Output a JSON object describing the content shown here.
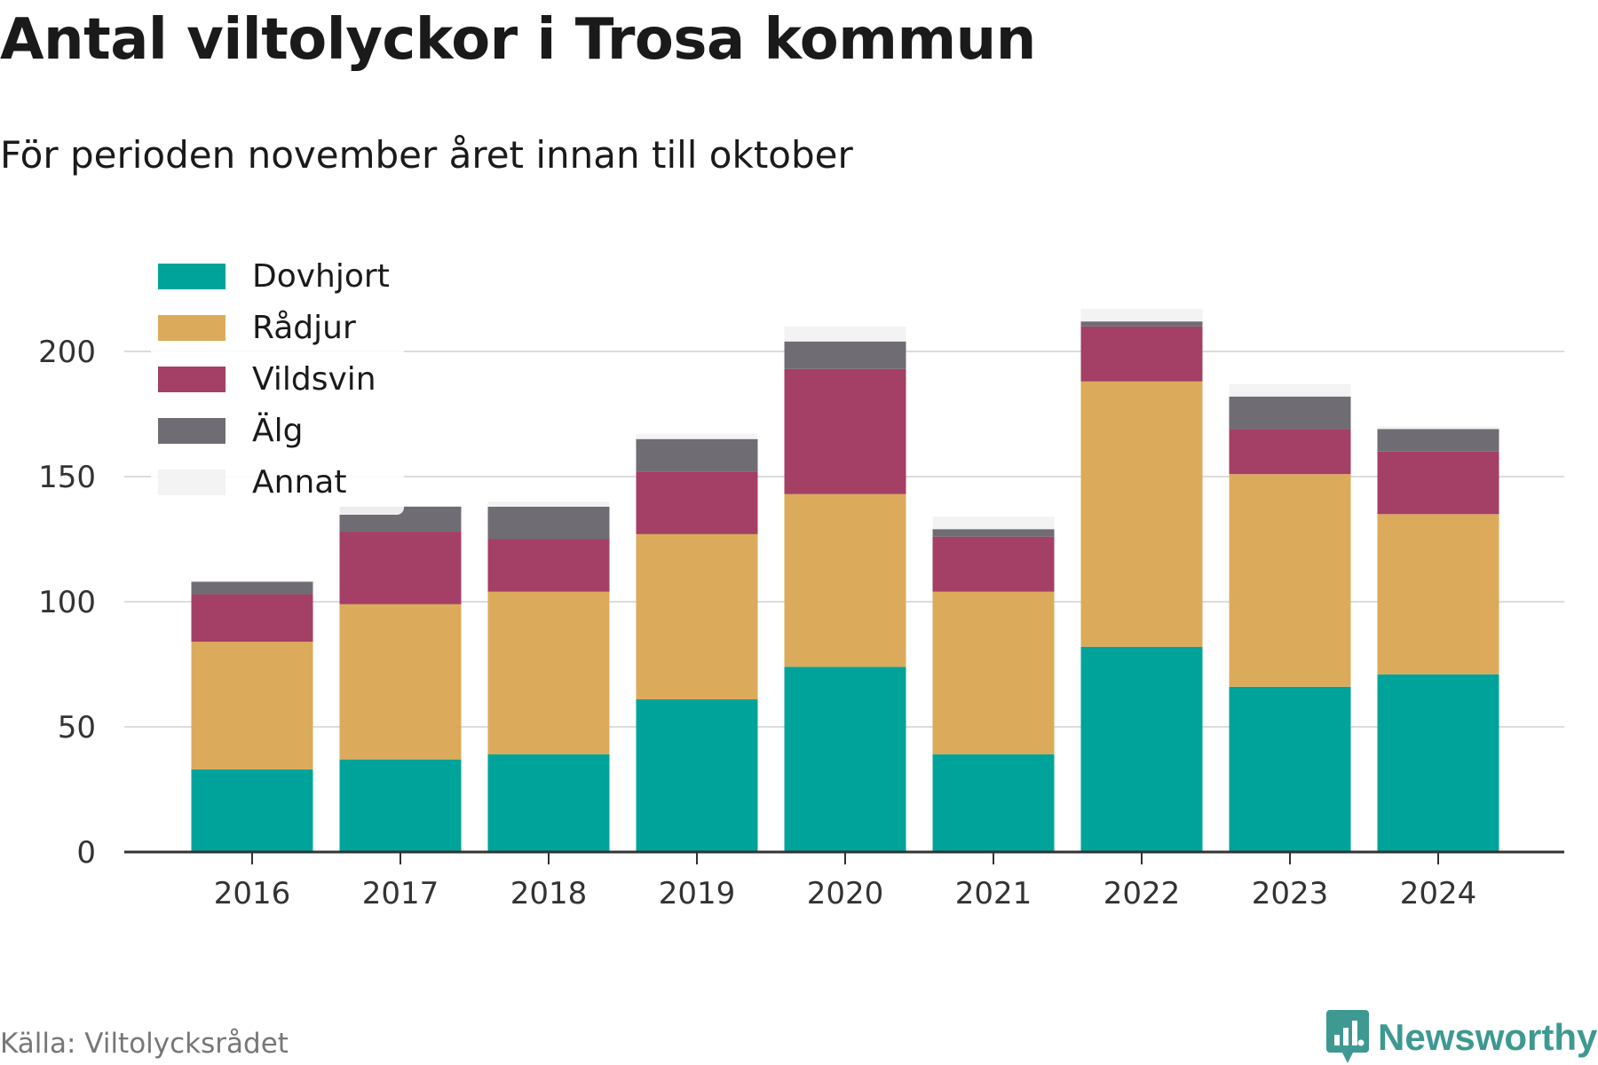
{
  "title": "Antal viltolyckor i Trosa kommun",
  "subtitle": "För perioden november året innan till oktober",
  "source": "Källa: Viltolycksrådet",
  "brand": {
    "name": "Newsworthy",
    "icon": "bar-chart-badge-icon",
    "color": "#3d9991"
  },
  "chart_data": {
    "type": "bar",
    "stacked": true,
    "categories": [
      "2016",
      "2017",
      "2018",
      "2019",
      "2020",
      "2021",
      "2022",
      "2023",
      "2024"
    ],
    "series": [
      {
        "name": "Dovhjort",
        "color": "#00a39a",
        "values": [
          33,
          37,
          39,
          61,
          74,
          39,
          82,
          66,
          71
        ]
      },
      {
        "name": "Rådjur",
        "color": "#dbab5b",
        "values": [
          51,
          62,
          65,
          66,
          69,
          65,
          106,
          85,
          64
        ]
      },
      {
        "name": "Vildsvin",
        "color": "#a43f65",
        "values": [
          19,
          29,
          21,
          25,
          50,
          22,
          22,
          18,
          25
        ]
      },
      {
        "name": "Älg",
        "color": "#6f6d73",
        "values": [
          5,
          10,
          13,
          13,
          11,
          3,
          2,
          13,
          9
        ]
      },
      {
        "name": "Annat",
        "color": "#f3f3f3",
        "values": [
          0,
          0,
          2,
          2,
          6,
          5,
          5,
          5,
          1
        ]
      }
    ],
    "yticks": [
      0,
      50,
      100,
      150,
      200
    ],
    "ylim": [
      0,
      225
    ],
    "grid": true,
    "legend": "top-left"
  }
}
